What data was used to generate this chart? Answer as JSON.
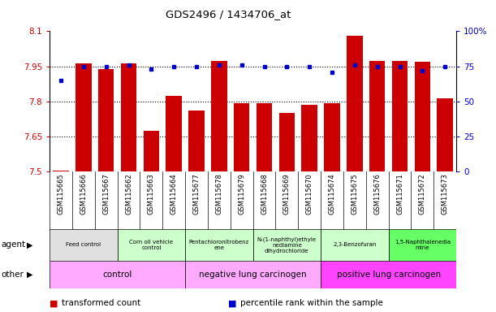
{
  "title": "GDS2496 / 1434706_at",
  "samples": [
    "GSM115665",
    "GSM115666",
    "GSM115667",
    "GSM115662",
    "GSM115663",
    "GSM115664",
    "GSM115677",
    "GSM115678",
    "GSM115679",
    "GSM115668",
    "GSM115669",
    "GSM115670",
    "GSM115674",
    "GSM115675",
    "GSM115676",
    "GSM115671",
    "GSM115672",
    "GSM115673"
  ],
  "bar_values": [
    7.503,
    7.961,
    7.938,
    7.964,
    7.674,
    7.822,
    7.762,
    7.972,
    7.793,
    7.794,
    7.752,
    7.786,
    7.792,
    8.082,
    7.972,
    7.972,
    7.971,
    7.813
  ],
  "dot_values": [
    65,
    75,
    75,
    76,
    73,
    75,
    75,
    76,
    76,
    75,
    75,
    75,
    71,
    76,
    75,
    75,
    72,
    75
  ],
  "bar_color": "#cc0000",
  "dot_color": "#0000cc",
  "ylim_left": [
    7.5,
    8.1
  ],
  "ylim_right": [
    0,
    100
  ],
  "yticks_left": [
    7.5,
    7.65,
    7.8,
    7.95,
    8.1
  ],
  "yticks_right": [
    0,
    25,
    50,
    75,
    100
  ],
  "ytick_labels_left": [
    "7.5",
    "7.65",
    "7.8",
    "7.95",
    "8.1"
  ],
  "ytick_labels_right": [
    "0",
    "25",
    "50",
    "75",
    "100%"
  ],
  "hlines": [
    7.65,
    7.8,
    7.95
  ],
  "agent_groups": [
    {
      "label": "Feed control",
      "start": 0,
      "end": 3,
      "color": "#e0e0e0"
    },
    {
      "label": "Corn oil vehicle\ncontrol",
      "start": 3,
      "end": 6,
      "color": "#ccffcc"
    },
    {
      "label": "Pentachloronitrobenz\nene",
      "start": 6,
      "end": 9,
      "color": "#ccffcc"
    },
    {
      "label": "N-(1-naphthyl)ethyle\nnediamine\ndihydrochloride",
      "start": 9,
      "end": 12,
      "color": "#ccffcc"
    },
    {
      "label": "2,3-Benzofuran",
      "start": 12,
      "end": 15,
      "color": "#ccffcc"
    },
    {
      "label": "1,5-Naphthalenedia\nmine",
      "start": 15,
      "end": 18,
      "color": "#66ff66"
    }
  ],
  "other_groups": [
    {
      "label": "control",
      "start": 0,
      "end": 6,
      "color": "#ffaaff"
    },
    {
      "label": "negative lung carcinogen",
      "start": 6,
      "end": 12,
      "color": "#ffaaff"
    },
    {
      "label": "positive lung carcinogen",
      "start": 12,
      "end": 18,
      "color": "#ff44ff"
    }
  ],
  "legend_items": [
    {
      "label": "transformed count",
      "color": "#cc0000"
    },
    {
      "label": "percentile rank within the sample",
      "color": "#0000cc"
    }
  ],
  "agent_label": "agent",
  "other_label": "other",
  "fig_bg": "#ffffff"
}
